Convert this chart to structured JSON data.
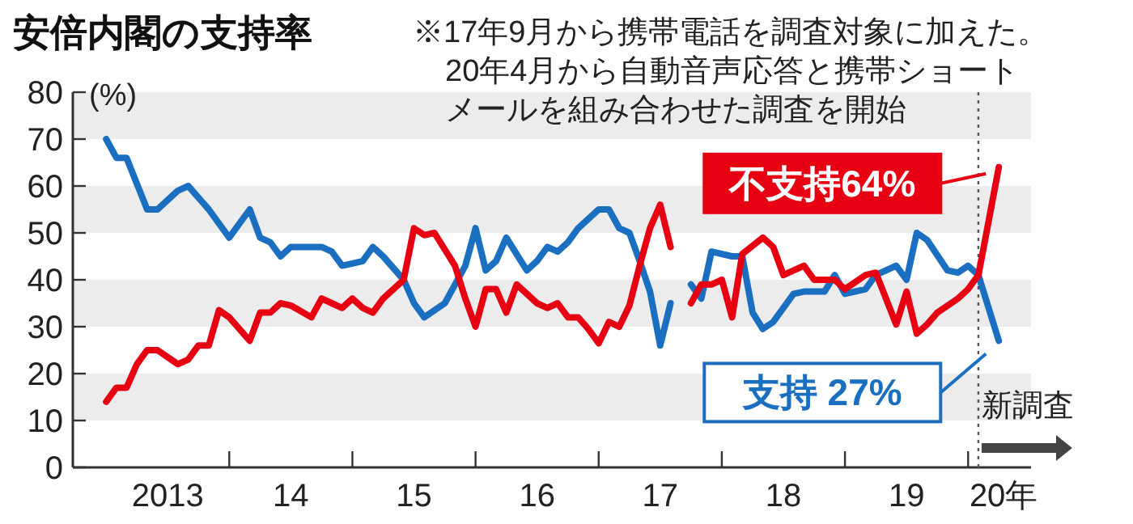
{
  "chart_data": {
    "type": "line",
    "title": "安倍内閣の支持率",
    "ylabel": "(%)",
    "annotations": [
      "※17年9月から携帯電話を調査対象に加えた。",
      "20年4月から自動音声応答と携帯ショートメールを組み合わせた調査を開始",
      {
        "text": "不支持64%",
        "x": "2020-04",
        "y": 64
      },
      {
        "text": "支持 27%",
        "x": "2020-04",
        "y": 27
      }
    ],
    "xlim": [
      "2012-09-24",
      "2020-07-05"
    ],
    "ylim": [
      0,
      80
    ],
    "xticks": [
      {
        "value": "2013-07-01",
        "label": "2013"
      },
      {
        "value": "2014-01-01",
        "label": null
      },
      {
        "value": "2014-07-01",
        "label": "14"
      },
      {
        "value": "2015-01-01",
        "label": null
      },
      {
        "value": "2015-07-01",
        "label": "15"
      },
      {
        "value": "2016-01-01",
        "label": null
      },
      {
        "value": "2016-07-01",
        "label": "16"
      },
      {
        "value": "2017-01-01",
        "label": null
      },
      {
        "value": "2017-07-01",
        "label": "17"
      },
      {
        "value": "2018-01-01",
        "label": null
      },
      {
        "value": "2018-07-01",
        "label": "18"
      },
      {
        "value": "2019-01-01",
        "label": null
      },
      {
        "value": "2019-07-01",
        "label": "19"
      },
      {
        "value": "2020-01-01",
        "label": null
      },
      {
        "value": "2020-04-15",
        "label": "20年"
      }
    ],
    "yticks": [
      0,
      10,
      20,
      30,
      40,
      50,
      60,
      70,
      80
    ],
    "bands": [
      {
        "axis": "y",
        "from": 10,
        "to": 20,
        "color": "#ececec"
      },
      {
        "axis": "y",
        "from": 30,
        "to": 40,
        "color": "#ececec"
      },
      {
        "axis": "y",
        "from": 50,
        "to": 60,
        "color": "#ececec"
      },
      {
        "axis": "y",
        "from": 70,
        "to": 80,
        "color": "#ececec"
      }
    ],
    "ref_lines": [
      {
        "axis": "x",
        "value": "2020-02",
        "label": "新調査",
        "color": "#555555",
        "line_style": "dotted"
      }
    ],
    "series": [
      {
        "color": "#1a6fc0",
        "x": [
          "2013-01",
          "2013-02",
          "2013-03",
          "2013-05",
          "2013-06",
          "2013-08",
          "2013-09",
          "2013-11",
          "2014-01",
          "2014-03",
          "2014-04",
          "2014-05",
          "2014-06",
          "2014-07",
          "2014-10",
          "2014-11",
          "2014-12",
          "2015-01",
          "2015-02",
          "2015-03",
          "2015-04",
          "2015-06",
          "2015-07",
          "2015-08",
          "2015-10",
          "2015-12",
          "2016-01",
          "2016-02",
          "2016-03",
          "2016-04",
          "2016-06",
          "2016-07",
          "2016-08",
          "2016-09",
          "2016-10",
          "2016-11",
          "2017-01",
          "2017-02",
          "2017-03",
          "2017-04",
          "2017-05",
          "2017-06",
          "2017-07",
          "2017-08",
          "2017-09",
          "2017-10",
          "2017-11",
          "2017-12",
          "2018-02",
          "2018-03",
          "2018-04",
          "2018-05",
          "2018-06",
          "2018-08",
          "2018-09",
          "2018-11",
          "2018-12",
          "2019-01",
          "2019-03",
          "2019-04",
          "2019-06",
          "2019-07",
          "2019-08",
          "2019-09",
          "2019-11",
          "2019-12",
          "2020-01",
          "2020-02",
          "2020-04"
        ],
        "values": [
          70,
          66,
          66,
          55,
          55,
          59,
          60,
          55,
          49,
          55,
          49,
          48,
          45,
          47,
          47,
          46,
          43,
          43.5,
          44,
          47,
          45,
          40,
          35,
          32,
          35,
          43,
          51,
          42,
          44,
          49,
          42,
          44,
          47,
          46,
          48,
          51,
          55,
          55,
          51,
          50,
          44,
          37.5,
          26,
          35,
          null,
          39,
          36,
          46,
          45,
          45,
          33,
          29.5,
          31,
          37,
          37.5,
          37.5,
          41,
          37,
          38,
          41,
          43,
          40,
          50,
          48.5,
          42,
          41.5,
          43,
          41,
          27
        ]
      },
      {
        "color": "#e60012",
        "x": [
          "2013-01",
          "2013-02",
          "2013-03",
          "2013-04",
          "2013-05",
          "2013-06",
          "2013-08",
          "2013-09",
          "2013-10",
          "2013-11",
          "2013-12",
          "2014-01",
          "2014-03",
          "2014-04",
          "2014-05",
          "2014-06",
          "2014-07",
          "2014-09",
          "2014-10",
          "2014-11",
          "2014-12",
          "2015-01",
          "2015-02",
          "2015-03",
          "2015-04",
          "2015-06",
          "2015-07",
          "2015-08",
          "2015-09",
          "2015-11",
          "2015-12",
          "2016-01",
          "2016-02",
          "2016-03",
          "2016-04",
          "2016-05",
          "2016-07",
          "2016-08",
          "2016-09",
          "2016-10",
          "2016-11",
          "2016-12",
          "2017-01",
          "2017-02",
          "2017-03",
          "2017-04",
          "2017-05",
          "2017-06",
          "2017-07",
          "2017-08",
          "2017-09",
          "2017-10",
          "2017-11",
          "2017-12",
          "2018-01",
          "2018-02",
          "2018-03",
          "2018-05",
          "2018-06",
          "2018-07",
          "2018-09",
          "2018-10",
          "2018-12",
          "2019-01",
          "2019-03",
          "2019-04",
          "2019-05",
          "2019-06",
          "2019-07",
          "2019-08",
          "2019-09",
          "2019-10",
          "2019-12",
          "2020-01",
          "2020-02",
          "2020-04"
        ],
        "values": [
          14,
          17,
          17,
          22,
          25,
          25,
          22,
          23,
          26,
          26,
          33.5,
          32,
          27,
          33,
          33,
          35,
          34.5,
          32,
          36,
          35,
          34,
          36,
          34,
          33,
          36,
          40,
          51,
          49.5,
          50,
          43,
          36,
          30,
          38,
          38,
          33,
          39,
          35,
          34,
          35,
          32,
          32,
          29.5,
          26.5,
          31,
          30,
          34.5,
          43,
          51,
          56,
          47,
          null,
          35,
          39,
          39,
          40,
          32,
          45.5,
          49,
          47,
          41,
          43,
          40,
          40,
          38,
          41,
          41.5,
          36,
          30.5,
          37.5,
          28.5,
          30.5,
          33,
          36,
          38,
          41,
          64
        ]
      }
    ]
  }
}
